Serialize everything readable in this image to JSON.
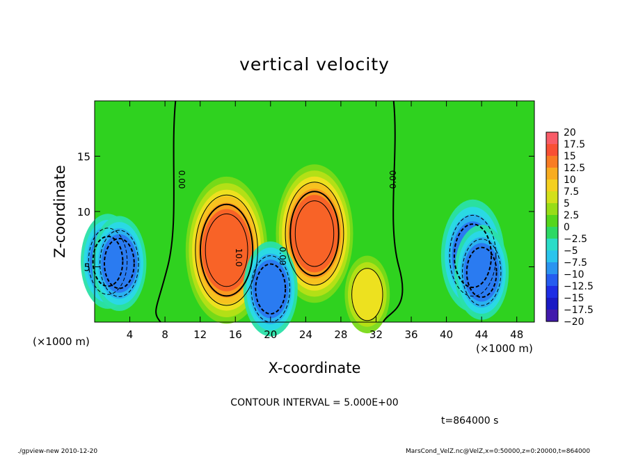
{
  "chart_data": {
    "type": "heatmap",
    "title": "vertical velocity",
    "xlabel": "X-coordinate",
    "ylabel": "Z-coordinate",
    "x_unit_label": "(×1000 m)",
    "x_unit_label_right": "(×1000 m)",
    "xlim": [
      0,
      50
    ],
    "ylim": [
      0,
      20
    ],
    "x_ticks": [
      4,
      8,
      12,
      16,
      20,
      24,
      28,
      32,
      36,
      40,
      44,
      48
    ],
    "y_ticks": [
      5,
      10,
      15
    ],
    "colorbar": {
      "min": -20,
      "max": 20,
      "step": 2.5,
      "labels": [
        "20",
        "17.5",
        "15",
        "12.5",
        "10",
        "7.5",
        "5",
        "2.5",
        "0",
        "−2.5",
        "−5",
        "−7.5",
        "−10",
        "−12.5",
        "−15",
        "−17.5",
        "−20"
      ]
    },
    "contour_labels": [
      "0.00",
      "0.00",
      "10.0",
      "0.00"
    ],
    "contour_interval_text": "CONTOUR INTERVAL = 5.000E+00",
    "time_text": "t=864000 s",
    "features": [
      {
        "x": 15.0,
        "z": 6.5,
        "value": 16
      },
      {
        "x": 25.0,
        "z": 8.0,
        "value": 15
      },
      {
        "x": 31.0,
        "z": 2.5,
        "value": 8
      },
      {
        "x": 1.5,
        "z": 5.5,
        "value": -10
      },
      {
        "x": 2.8,
        "z": 5.3,
        "value": -10
      },
      {
        "x": 20.0,
        "z": 3.0,
        "value": -10
      },
      {
        "x": 43.0,
        "z": 6.0,
        "value": -12
      },
      {
        "x": 44.0,
        "z": 4.5,
        "value": -10
      }
    ]
  },
  "footer": {
    "left": "./gpview-new  2010-12-20",
    "right": "MarsCond_VelZ.nc@VelZ,x=0:50000,z=0:20000,t=864000"
  }
}
